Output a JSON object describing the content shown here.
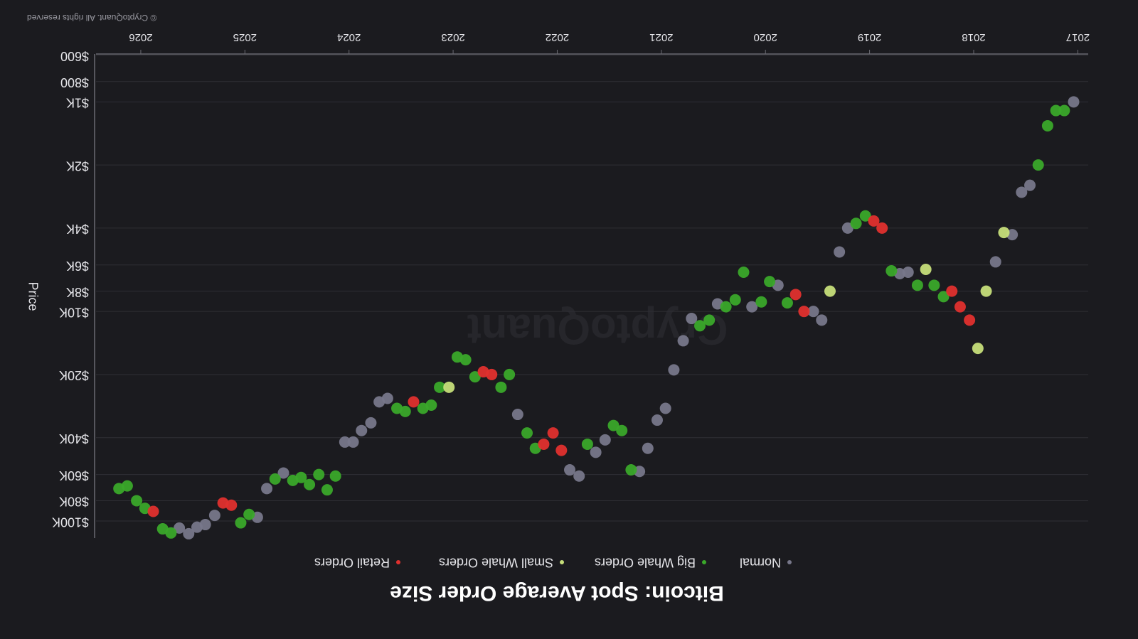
{
  "chart_data": {
    "type": "scatter",
    "title": "Bitcoin: Spot Average Order Size",
    "y_label": "Price",
    "watermark": "CryptoQuant",
    "copyright": "© CryptoQuant. All rights reserved",
    "yscale": "log",
    "grid": true,
    "legend": "top",
    "xlim": [
      2016.9,
      2026.43
    ],
    "xticks": [
      2017,
      2018,
      2019,
      2020,
      2021,
      2022,
      2023,
      2024,
      2025,
      2026
    ],
    "ylim": [
      591,
      120600
    ],
    "yticks": [
      {
        "value": 600,
        "label": "$600"
      },
      {
        "value": 800,
        "label": "$800"
      },
      {
        "value": 1000,
        "label": "$1K"
      },
      {
        "value": 2000,
        "label": "$2K"
      },
      {
        "value": 4000,
        "label": "$4K"
      },
      {
        "value": 6000,
        "label": "$6K"
      },
      {
        "value": 8000,
        "label": "$8K"
      },
      {
        "value": 10000,
        "label": "$10K"
      },
      {
        "value": 20000,
        "label": "$20K"
      },
      {
        "value": 40000,
        "label": "$40K"
      },
      {
        "value": 60000,
        "label": "$60K"
      },
      {
        "value": 80000,
        "label": "$80K"
      },
      {
        "value": 100000,
        "label": "$100K"
      }
    ],
    "series": [
      {
        "name": "Normal",
        "color": "#77778a",
        "x": [
          2017.04,
          2017.46,
          2017.54,
          2017.63,
          2017.79,
          2018.63,
          2018.71,
          2019.21,
          2019.29,
          2019.46,
          2019.54,
          2019.88,
          2020.13,
          2020.46,
          2020.71,
          2020.79,
          2020.88,
          2020.96,
          2021.04,
          2021.13,
          2021.21,
          2021.54,
          2021.63,
          2021.79,
          2021.88,
          2022.38,
          2023.63,
          2023.71,
          2023.79,
          2023.88,
          2023.96,
          2024.04,
          2024.63,
          2024.79,
          2024.88,
          2025.29,
          2025.38,
          2025.46,
          2025.54,
          2025.63
        ],
        "values": [
          1000,
          2500,
          2700,
          4300,
          5800,
          6500,
          6600,
          4000,
          5200,
          11000,
          10000,
          7500,
          9500,
          9200,
          10800,
          13800,
          19000,
          29000,
          33000,
          45000,
          58000,
          41000,
          47000,
          61000,
          57000,
          31000,
          26000,
          27000,
          34000,
          37000,
          42000,
          42000,
          59000,
          70000,
          96000,
          94000,
          104000,
          107000,
          115000,
          108000
        ]
      },
      {
        "name": "Big Whale Orders",
        "color": "#3aa82a",
        "x": [
          2017.13,
          2017.21,
          2017.29,
          2017.38,
          2018.29,
          2018.38,
          2018.54,
          2018.79,
          2019.04,
          2019.13,
          2019.79,
          2019.96,
          2020.04,
          2020.21,
          2020.29,
          2020.38,
          2020.54,
          2020.63,
          2021.29,
          2021.38,
          2021.46,
          2021.71,
          2022.21,
          2022.29,
          2022.46,
          2022.54,
          2022.79,
          2022.88,
          2022.96,
          2023.13,
          2023.21,
          2023.29,
          2023.46,
          2023.54,
          2024.13,
          2024.21,
          2024.29,
          2024.38,
          2024.46,
          2024.54,
          2024.71,
          2024.96,
          2025.04,
          2025.71,
          2025.79,
          2025.96,
          2026.04,
          2026.13,
          2026.21
        ],
        "values": [
          1100,
          1100,
          1300,
          2000,
          8500,
          7500,
          7500,
          6400,
          3500,
          3800,
          9100,
          7200,
          9000,
          6500,
          8800,
          9500,
          11000,
          11700,
          57000,
          37000,
          35000,
          43000,
          45000,
          38000,
          20000,
          23000,
          20500,
          17000,
          16500,
          23000,
          28000,
          29000,
          30000,
          29000,
          61000,
          71000,
          60000,
          67000,
          62000,
          64000,
          63000,
          93000,
          102000,
          114000,
          109000,
          87000,
          80000,
          68000,
          70000
        ]
      },
      {
        "name": "Small Whale Orders",
        "color": "#c6de7a",
        "x": [
          2017.71,
          2017.88,
          2017.96,
          2018.46,
          2019.38,
          2023.04
        ],
        "values": [
          4200,
          8000,
          15000,
          6300,
          8000,
          23000
        ]
      },
      {
        "name": "Retail Orders",
        "color": "#e0302e",
        "x": [
          2018.04,
          2018.13,
          2018.21,
          2018.88,
          2018.96,
          2019.63,
          2019.71,
          2021.96,
          2022.04,
          2022.13,
          2022.63,
          2022.71,
          2023.38,
          2025.13,
          2025.21,
          2025.88
        ],
        "values": [
          11000,
          9500,
          8000,
          4000,
          3700,
          10000,
          8300,
          46000,
          38000,
          43000,
          20000,
          19400,
          27000,
          84000,
          82000,
          90000
        ]
      }
    ]
  }
}
